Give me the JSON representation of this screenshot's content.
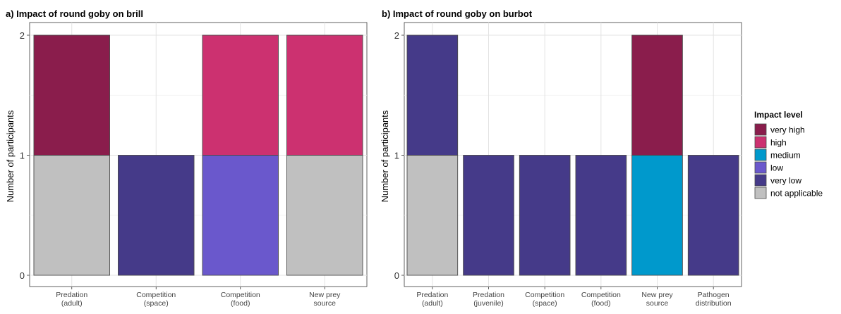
{
  "colors": {
    "very high": "#8a1d4c",
    "high": "#cc3170",
    "medium": "#0099cc",
    "low": "#6a58cc",
    "very low": "#453a89",
    "not applicable": "#c0c0c0"
  },
  "legend": {
    "title": "Impact level",
    "entries": [
      "very high",
      "high",
      "medium",
      "low",
      "very low",
      "not applicable"
    ]
  },
  "chart_data": [
    {
      "type": "bar",
      "stacked": true,
      "title": "a) Impact of round goby on brill",
      "xlabel": "",
      "ylabel": "Number of participants",
      "ylim": [
        0,
        2
      ],
      "yticks": [
        0,
        1,
        2
      ],
      "grid": true,
      "categories": [
        [
          "Predation",
          "(adult)"
        ],
        [
          "Competition",
          "(space)"
        ],
        [
          "Competition",
          "(food)"
        ],
        [
          "New prey",
          "source"
        ]
      ],
      "series": [
        {
          "name": "not applicable",
          "values": [
            1,
            0,
            0,
            1
          ]
        },
        {
          "name": "very low",
          "values": [
            0,
            1,
            0,
            0
          ]
        },
        {
          "name": "low",
          "values": [
            0,
            0,
            1,
            0
          ]
        },
        {
          "name": "medium",
          "values": [
            0,
            0,
            0,
            0
          ]
        },
        {
          "name": "high",
          "values": [
            0,
            0,
            1,
            1
          ]
        },
        {
          "name": "very high",
          "values": [
            1,
            0,
            0,
            0
          ]
        }
      ]
    },
    {
      "type": "bar",
      "stacked": true,
      "title": "b) Impact of round goby on burbot",
      "xlabel": "",
      "ylabel": "Number of participants",
      "ylim": [
        0,
        2
      ],
      "yticks": [
        0,
        1,
        2
      ],
      "grid": true,
      "categories": [
        [
          "Predation",
          "(adult)"
        ],
        [
          "Predation",
          "(juvenile)"
        ],
        [
          "Competition",
          "(space)"
        ],
        [
          "Competition",
          "(food)"
        ],
        [
          "New prey",
          "source"
        ],
        [
          "Pathogen",
          "distribution"
        ]
      ],
      "series": [
        {
          "name": "not applicable",
          "values": [
            1,
            0,
            0,
            0,
            0,
            0
          ]
        },
        {
          "name": "very low",
          "values": [
            1,
            1,
            1,
            1,
            0,
            1
          ]
        },
        {
          "name": "low",
          "values": [
            0,
            0,
            0,
            0,
            0,
            0
          ]
        },
        {
          "name": "medium",
          "values": [
            0,
            0,
            0,
            0,
            1,
            0
          ]
        },
        {
          "name": "high",
          "values": [
            0,
            0,
            0,
            0,
            0,
            0
          ]
        },
        {
          "name": "very high",
          "values": [
            0,
            0,
            0,
            0,
            1,
            0
          ]
        }
      ]
    }
  ]
}
